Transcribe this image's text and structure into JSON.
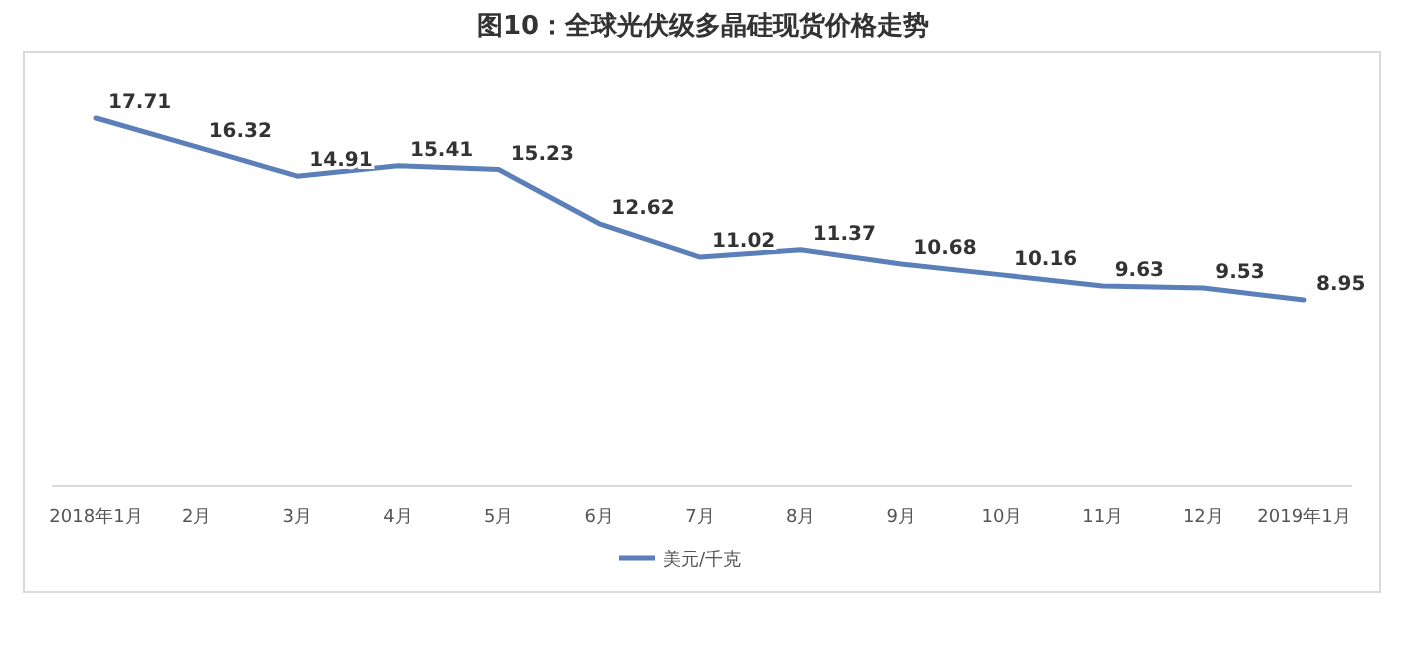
{
  "chart_data": {
    "type": "line",
    "title": "图10：全球光伏级多晶硅现货价格走势",
    "categories": [
      "2018年1月",
      "2月",
      "3月",
      "4月",
      "5月",
      "6月",
      "7月",
      "8月",
      "9月",
      "10月",
      "11月",
      "12月",
      "2019年1月"
    ],
    "series": [
      {
        "name": "美元/千克",
        "color": "#5b7fb8",
        "values": [
          17.71,
          16.32,
          14.91,
          15.41,
          15.23,
          12.62,
          11.02,
          11.37,
          10.68,
          10.16,
          9.63,
          9.53,
          8.95
        ]
      }
    ],
    "tick_labels": "x",
    "data_labels": true,
    "legend": "bottom"
  }
}
